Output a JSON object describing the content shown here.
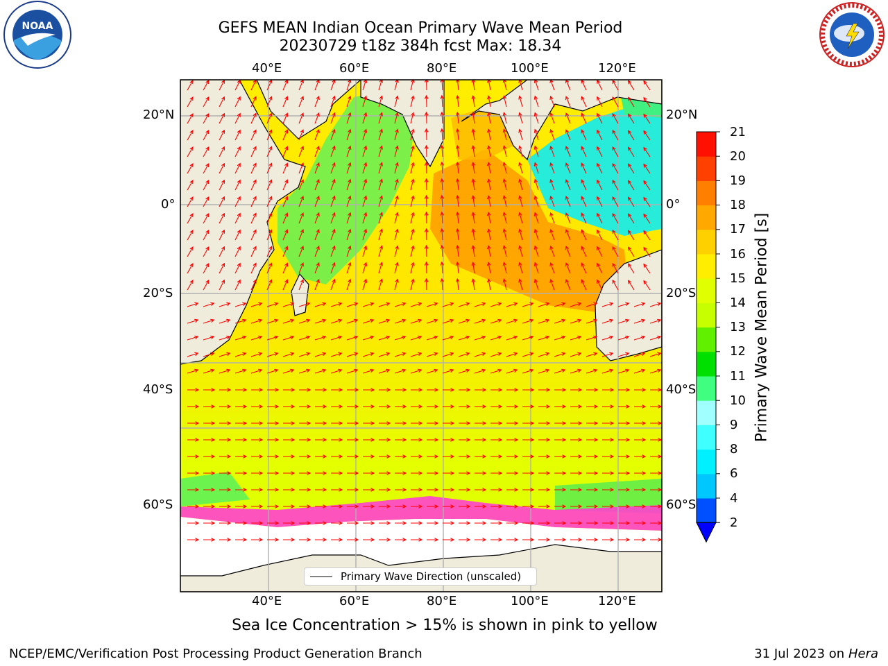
{
  "header": {
    "title_line1": "GEFS MEAN Indian Ocean Primary Wave Mean Period",
    "title_line2": "20230729 t18z 384h fcst   Max: 18.34"
  },
  "logos": {
    "left": "noaa-logo",
    "right": "nws-logo"
  },
  "map": {
    "region": "Indian Ocean",
    "lon_range": [
      20,
      130
    ],
    "lat_range": [
      -75,
      27
    ],
    "lon_ticks": [
      "40°E",
      "60°E",
      "80°E",
      "100°E",
      "120°E"
    ],
    "lat_ticks": [
      "20°N",
      "0°",
      "20°S",
      "40°S",
      "60°S"
    ],
    "land_color": "#efecdc",
    "arrow_color": "#ff0000",
    "legend_label": "Primary Wave Direction (unscaled)"
  },
  "colorbar": {
    "label": "Primary Wave Mean Period [s]",
    "ticks": [
      "2",
      "4",
      "6",
      "8",
      "9",
      "10",
      "11",
      "12",
      "13",
      "14",
      "15",
      "16",
      "17",
      "18",
      "19",
      "20",
      "21"
    ],
    "colors": [
      "#0050ff",
      "#00c8ff",
      "#00f0ff",
      "#40ffff",
      "#a0ffff",
      "#40ff80",
      "#00e000",
      "#60f000",
      "#c8ff00",
      "#e0ff00",
      "#ffee00",
      "#ffd000",
      "#ffa800",
      "#ff8000",
      "#ff4000",
      "#ff1000"
    ],
    "underflow_color": "#0000ff"
  },
  "note": "Sea Ice Concentration > 15% is shown in pink to yellow",
  "footer": {
    "left": "NCEP/EMC/Verification Post Processing Product Generation Branch",
    "right_prefix": "31 Jul 2023 on ",
    "right_host": "Hera"
  }
}
